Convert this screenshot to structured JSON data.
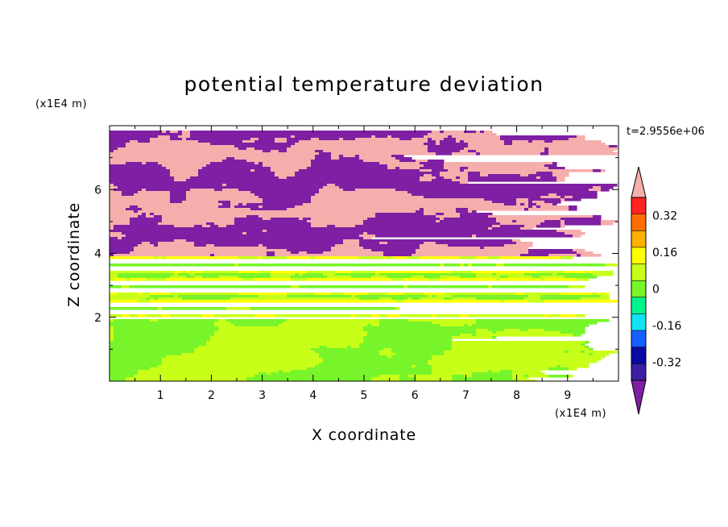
{
  "chart_data": {
    "type": "heatmap",
    "title": "potential temperature deviation",
    "xlabel": "X coordinate",
    "ylabel": "Z coordinate",
    "x_units": "(x1E4 m)",
    "y_units": "(x1E4 m)",
    "time_label": "t=2.9556e+06",
    "xlim": [
      0,
      10
    ],
    "ylim": [
      0,
      8
    ],
    "x_ticks": [
      "1",
      "2",
      "3",
      "4",
      "5",
      "6",
      "7",
      "8",
      "9"
    ],
    "x_tick_values": [
      1,
      2,
      3,
      4,
      5,
      6,
      7,
      8,
      9
    ],
    "y_ticks": [
      "2",
      "4",
      "6"
    ],
    "y_tick_values": [
      2,
      4,
      6
    ],
    "color_levels": [
      -0.48,
      -0.4,
      -0.32,
      -0.24,
      -0.16,
      -0.08,
      0,
      0.08,
      0.16,
      0.24,
      0.32,
      0.4,
      0.48
    ],
    "colorbar_colors": [
      "#7f1fa3",
      "#3a1fa3",
      "#0a0aa0",
      "#1460ff",
      "#10e4f4",
      "#00f58c",
      "#78f52a",
      "#c8ff19",
      "#ffff00",
      "#ffb000",
      "#ff6d00",
      "#ff2323",
      "#f5aeac"
    ],
    "colorbar_labels": [
      "0.32",
      "0.16",
      "0",
      "-0.16",
      "-0.32"
    ],
    "colorbar_label_values": [
      0.32,
      0.16,
      0,
      -0.16,
      -0.32
    ],
    "regions": [
      {
        "z_range": [
          0,
          1.95
        ],
        "description_value": "mostly 0 to 0.08, patches of 0 to -0.08"
      },
      {
        "z_range": [
          1.95,
          2.05
        ],
        "description_value": "thin band near -0.08"
      },
      {
        "z_range": [
          2.05,
          3.9
        ],
        "description_value": "horizontal bands between -0.08 and 0.24"
      },
      {
        "z_range": [
          3.9,
          8.0
        ],
        "description_value": "alternating layers of > 0.48 and < -0.48 with turbulent edges"
      }
    ]
  }
}
